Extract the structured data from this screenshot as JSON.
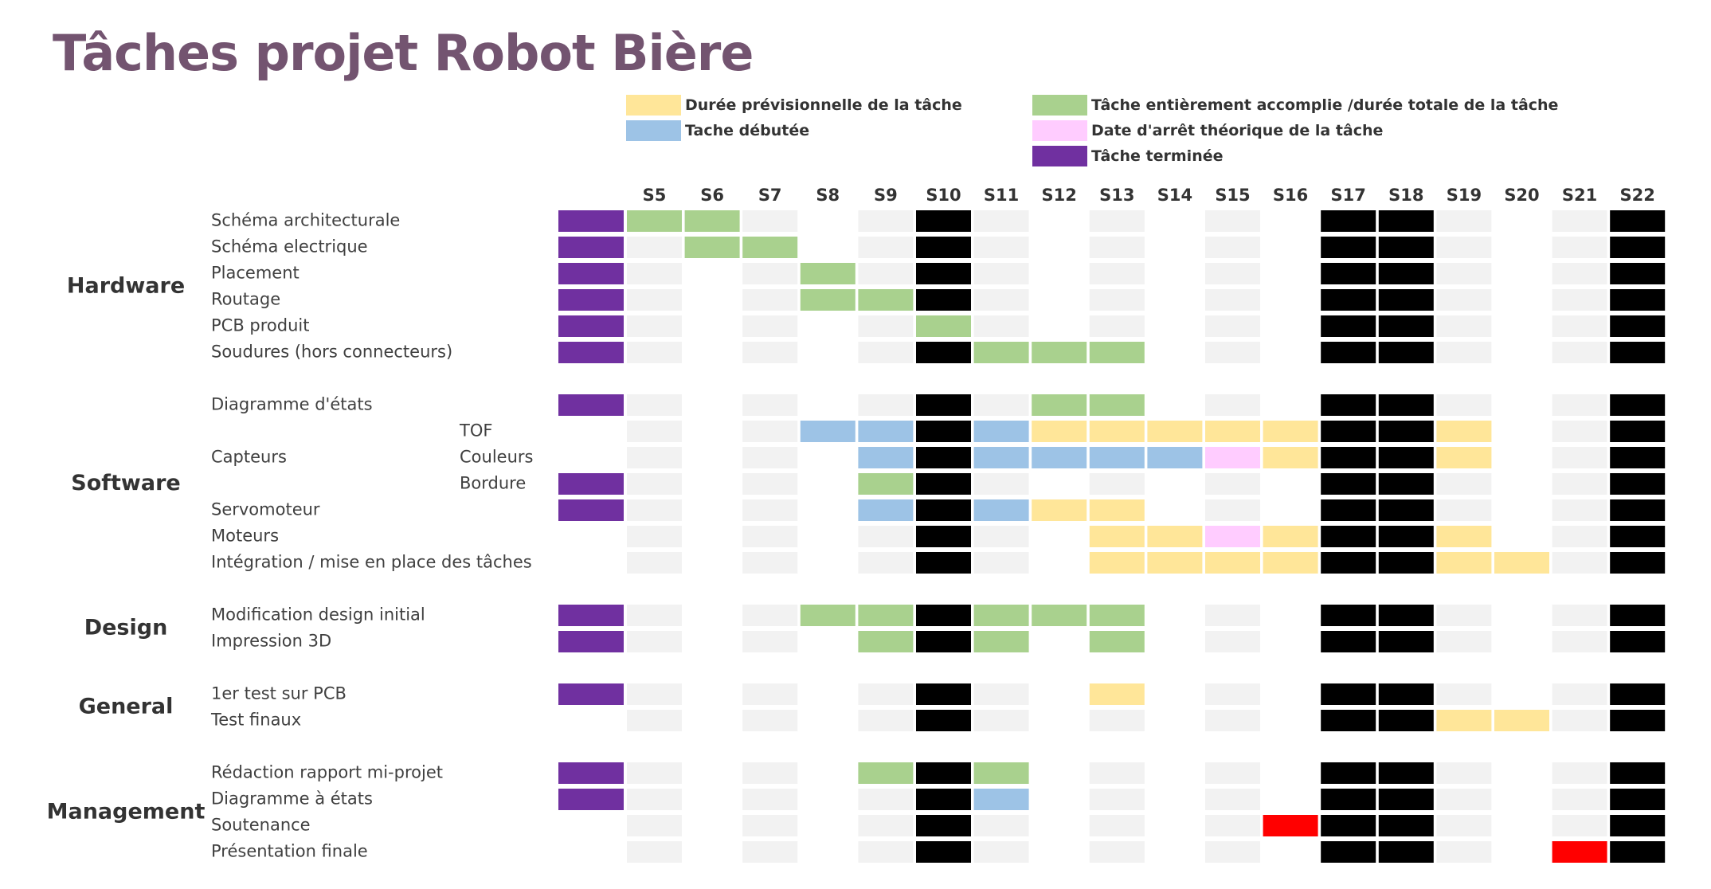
{
  "title": "Tâches projet Robot Bière",
  "colors": {
    "planned": "#FFE699",
    "started": "#9DC3E6",
    "completed_ratio": "#A9D18E",
    "theoretical_stop": "#FFCCFF",
    "finished": "#7030A0",
    "holiday": "#000000",
    "milestone": "#FF0000",
    "empty": "#F2F2F2",
    "group_label": "#333333",
    "task_label": "#404040"
  },
  "legend": [
    {
      "key": "planned",
      "label": "Durée prévisionnelle de la tâche"
    },
    {
      "key": "started",
      "label": "Tache débutée"
    },
    {
      "key": "completed_ratio",
      "label": "Tâche entièrement accomplie /durée totale de la tâche"
    },
    {
      "key": "theoretical_stop",
      "label": "Date d'arrêt théorique de la tâche"
    },
    {
      "key": "finished",
      "label": "Tâche terminée"
    }
  ],
  "chart_data": {
    "type": "table",
    "columns": [
      "S5",
      "S6",
      "S7",
      "S8",
      "S9",
      "S10",
      "S11",
      "S12",
      "S13",
      "S14",
      "S15",
      "S16",
      "S17",
      "S18",
      "S19",
      "S20",
      "S21",
      "S22"
    ],
    "legend_key": {
      "Y": "planned",
      "B": "started",
      "G": "completed_ratio",
      "P": "theoretical_stop",
      "K": "holiday",
      "R": "milestone",
      "E": "empty",
      "N": "none"
    },
    "groups": [
      {
        "name": "Hardware",
        "rows": [
          {
            "task": "Schéma architecturale",
            "status": "finished",
            "cells": "GGENEKENENENKKENEK"
          },
          {
            "task": "Schéma electrique",
            "status": "finished",
            "cells": "EGGNEKENENENKKENEK"
          },
          {
            "task": "Placement",
            "status": "finished",
            "cells": "ENEGEKENENENKKENEK"
          },
          {
            "task": "Routage",
            "status": "finished",
            "cells": "ENEGGKENENENKKENEK"
          },
          {
            "task": "PCB produit",
            "status": "finished",
            "cells": "ENENEGENENENKKENEK"
          },
          {
            "task": "Soudures (hors connecteurs)",
            "status": "finished",
            "cells": "ENENEKGGGNENKKENEK"
          }
        ]
      },
      {
        "name": "Software",
        "rows": [
          {
            "task": "Diagramme d'états",
            "status": "finished",
            "cells": "ENENEKEGGNENKKENEK"
          },
          {
            "task": "",
            "sub": "TOF",
            "status": "",
            "cells": "ENEBBKBYYYYYKKYNEK"
          },
          {
            "task": "Capteurs",
            "sub": "Couleurs",
            "status": "",
            "cells": "ENENBKBBBBPYKKYNEK"
          },
          {
            "task": "",
            "sub": "Bordure",
            "status": "finished",
            "cells": "ENENGKENENENKKENEK"
          },
          {
            "task": "Servomoteur",
            "status": "finished",
            "cells": "ENENBKBYYNENKKENEK"
          },
          {
            "task": "Moteurs",
            "status": "",
            "cells": "ENENEKENYYPYKKYNEK"
          },
          {
            "task": "Intégration / mise en place des tâches",
            "status": "",
            "cells": "ENENEKENYYYYKKYYEK"
          }
        ]
      },
      {
        "name": "Design",
        "rows": [
          {
            "task": "Modification design initial",
            "status": "finished",
            "cells": "ENEGGKGGGNENKKENEK"
          },
          {
            "task": "Impression 3D",
            "status": "finished",
            "cells": "ENENGKGNGNENKKENEK"
          }
        ]
      },
      {
        "name": "General",
        "rows": [
          {
            "task": "1er test sur PCB",
            "status": "finished",
            "cells": "ENENEKENYNENKKENEK"
          },
          {
            "task": "Test finaux",
            "status": "",
            "cells": "ENENEKENENENKKYYEK"
          }
        ]
      },
      {
        "name": "Management",
        "rows": [
          {
            "task": "Rédaction rapport mi-projet",
            "status": "finished",
            "cells": "ENENGKGNENENKKENEK"
          },
          {
            "task": "Diagramme à états",
            "status": "finished",
            "cells": "ENENEKBNENENKKENEK"
          },
          {
            "task": "Soutenance",
            "status": "",
            "cells": "ENENEKENENERKKENEK"
          },
          {
            "task": "Présentation finale",
            "status": "",
            "cells": "ENENEKENENENKKENRK"
          }
        ]
      }
    ]
  }
}
